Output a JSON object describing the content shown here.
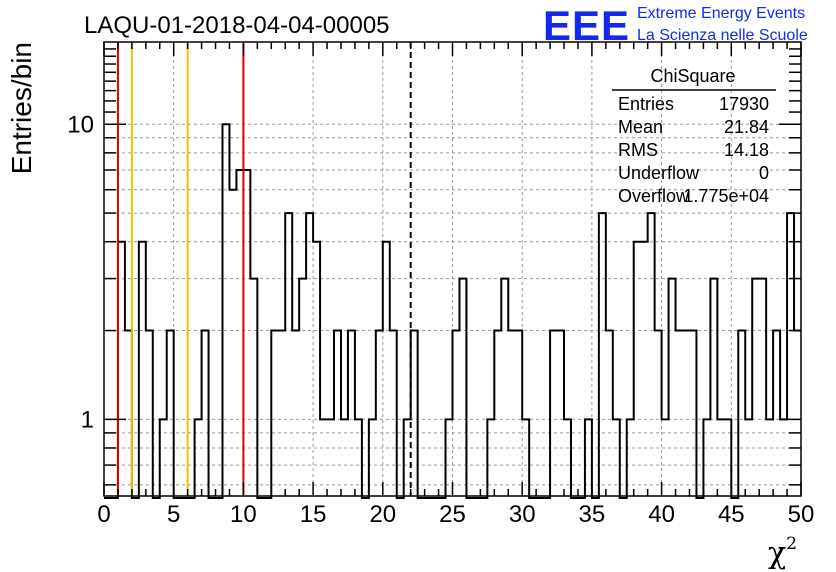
{
  "chart_data": {
    "type": "bar",
    "title": "LAQU-01-2018-04-04-00005",
    "ylabel": "Entries/bin",
    "xlabel": "χ",
    "xlabel_sup": "2",
    "xlim": [
      0,
      50
    ],
    "ylim": [
      0.55,
      19
    ],
    "yscale": "log",
    "bin_width": 0.5,
    "x_tick_labels": [
      "0",
      "5",
      "10",
      "15",
      "20",
      "25",
      "30",
      "35",
      "40",
      "45",
      "50"
    ],
    "y_tick_labels": [
      "1",
      "10"
    ],
    "counts": [
      0,
      0,
      4,
      2,
      0,
      4,
      2,
      0,
      1,
      2,
      0,
      0,
      0,
      1,
      2,
      0,
      0,
      10,
      6,
      7,
      7,
      3,
      0,
      0,
      2,
      2,
      5,
      2,
      3,
      5,
      4,
      1,
      1,
      2,
      1,
      2,
      1,
      0,
      1,
      2,
      4,
      2,
      0,
      1,
      2,
      0,
      0,
      0,
      0,
      1,
      2,
      3,
      0,
      0,
      0,
      1,
      2,
      3,
      2,
      2,
      1,
      0,
      0,
      0,
      2,
      2,
      1,
      0,
      0,
      1,
      0,
      5,
      2,
      1,
      0,
      1,
      4,
      4,
      5,
      2,
      1,
      3,
      2,
      2,
      2,
      0,
      1,
      3,
      1,
      1,
      0,
      2,
      1,
      3,
      3,
      1,
      2,
      1,
      5,
      2
    ],
    "vertical_lines": [
      {
        "x": 1,
        "color": "#e00000",
        "style": "solid"
      },
      {
        "x": 2,
        "color": "#f0c000",
        "style": "solid"
      },
      {
        "x": 6,
        "color": "#f0c000",
        "style": "solid"
      },
      {
        "x": 10,
        "color": "#e00000",
        "style": "solid"
      },
      {
        "x": 22,
        "color": "#000000",
        "style": "dashed"
      }
    ],
    "stats_box": {
      "title": "ChiSquare",
      "rows": [
        {
          "label": "Entries",
          "value": "17930"
        },
        {
          "label": "Mean",
          "value": "21.84"
        },
        {
          "label": "RMS",
          "value": "14.18"
        },
        {
          "label": "Underflow",
          "value": "0"
        },
        {
          "label": "Overflow",
          "value": "1.775e+04"
        }
      ]
    },
    "colors": {
      "histogram": "#000000",
      "grid": "#999999",
      "logo": "#1428f0"
    }
  },
  "logo": {
    "text": "EEE",
    "line1": "Extreme Energy Events",
    "line2": "La Scienza nelle Scuole"
  }
}
